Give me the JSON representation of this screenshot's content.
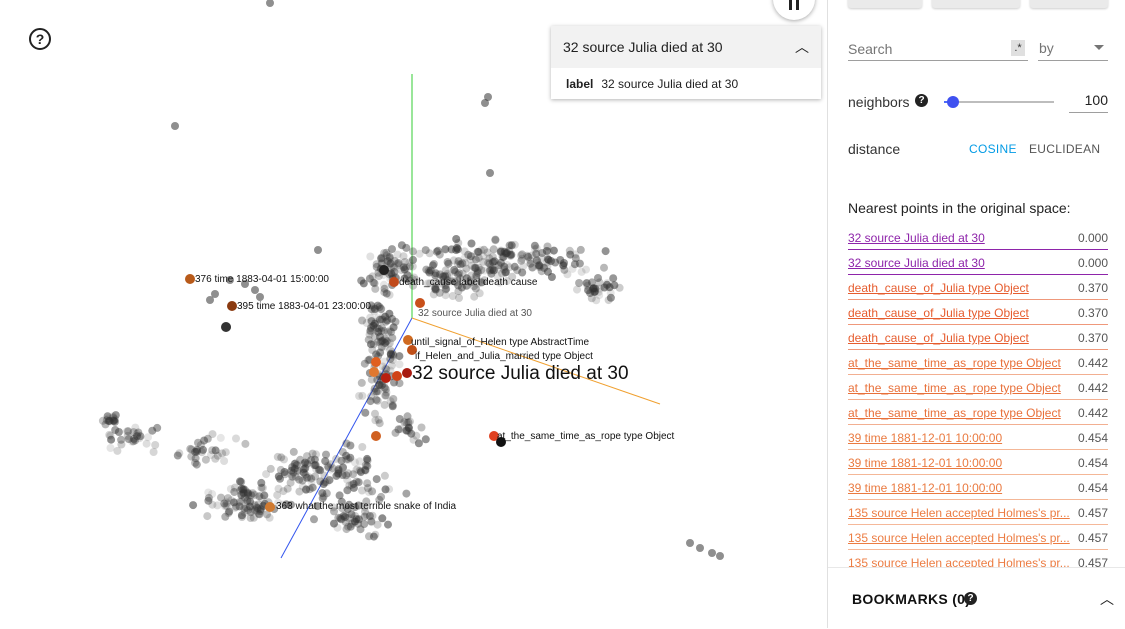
{
  "viewer": {
    "help_icon": "question-circle-icon",
    "pause_icon": "pause-icon",
    "hover_card": {
      "title": "32 source Julia died at 30",
      "chevron_icon": "chevron-up-icon",
      "field_key": "label",
      "field_value": "32 source Julia died at 30"
    },
    "point_labels": [
      "376 time 1883-04-01 15:00:00",
      "395 time 1883-04-01 23:00:00",
      "death_cause label death cause",
      "32 source Julia died at 30",
      "until_signal_of_Helen type AbstractTime",
      "if_Helen_and_Julia_married type Object",
      "at_the_same_time_as_rope type Object",
      "363 what the most terrible snake of India"
    ],
    "selected_label": "32 source Julia died at 30"
  },
  "panel": {
    "search": {
      "placeholder": "Search",
      "regex_label": ".*",
      "by_label": "by"
    },
    "neighbors": {
      "label": "neighbors",
      "value": "100",
      "slider_fraction": 0.08,
      "help_icon": "question-circle-icon"
    },
    "distance": {
      "label": "distance",
      "options": [
        "COSINE",
        "EUCLIDEAN"
      ],
      "selected": "COSINE"
    },
    "nearest": {
      "title": "Nearest points in the original space:",
      "items": [
        {
          "label": "32 source Julia died at 30",
          "value": "0.000",
          "color": "#8e24aa"
        },
        {
          "label": "32 source Julia died at 30",
          "value": "0.000",
          "color": "#8e24aa"
        },
        {
          "label": "death_cause_of_Julia type Object",
          "value": "0.370",
          "color": "#e65c2e"
        },
        {
          "label": "death_cause_of_Julia type Object",
          "value": "0.370",
          "color": "#e65c2e"
        },
        {
          "label": "death_cause_of_Julia type Object",
          "value": "0.370",
          "color": "#e65c2e"
        },
        {
          "label": "at_the_same_time_as_rope type Object",
          "value": "0.442",
          "color": "#e8703a"
        },
        {
          "label": "at_the_same_time_as_rope type Object",
          "value": "0.442",
          "color": "#e8703a"
        },
        {
          "label": "at_the_same_time_as_rope type Object",
          "value": "0.442",
          "color": "#e8703a"
        },
        {
          "label": "39 time 1881-12-01 10:00:00",
          "value": "0.454",
          "color": "#ea7a40"
        },
        {
          "label": "39 time 1881-12-01 10:00:00",
          "value": "0.454",
          "color": "#ea7a40"
        },
        {
          "label": "39 time 1881-12-01 10:00:00",
          "value": "0.454",
          "color": "#ea7a40"
        },
        {
          "label": "135 source Helen accepted Holmes's pr...",
          "value": "0.457",
          "color": "#ec7c42"
        },
        {
          "label": "135 source Helen accepted Holmes's pr...",
          "value": "0.457",
          "color": "#ec7c42"
        },
        {
          "label": "135 source Helen accepted Holmes's pr...",
          "value": "0.457",
          "color": "#ec7c42"
        }
      ]
    },
    "bookmarks": {
      "label": "BOOKMARKS (0)",
      "help_icon": "question-circle-icon",
      "chevron_icon": "chevron-up-icon"
    },
    "colors": {
      "accent": "#039be5",
      "slider": "#3f51f0",
      "selected": "#8e24aa"
    }
  }
}
